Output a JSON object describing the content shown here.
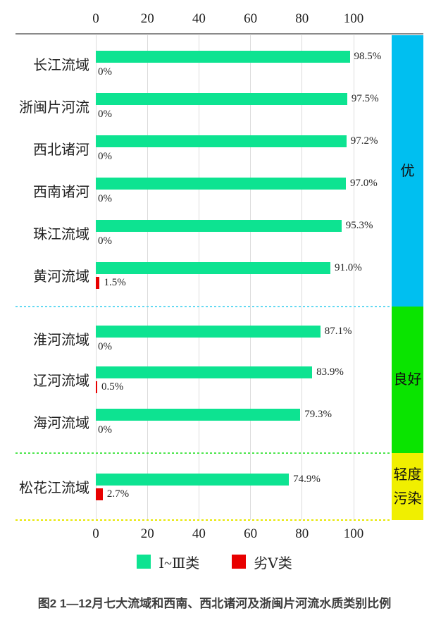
{
  "chart_data": {
    "type": "bar",
    "orientation": "horizontal",
    "categories": [
      "长江流域",
      "浙闽片河流",
      "西北诸河",
      "西南诸河",
      "珠江流域",
      "黄河流域",
      "淮河流域",
      "辽河流域",
      "海河流域",
      "松花江流域"
    ],
    "series": [
      {
        "name": "Ⅰ~Ⅲ类",
        "color": "#0de391",
        "values": [
          98.5,
          97.5,
          97.2,
          97.0,
          95.3,
          91.0,
          87.1,
          83.9,
          79.3,
          74.9
        ],
        "labels": [
          "98.5%",
          "97.5%",
          "97.2%",
          "97.0%",
          "95.3%",
          "91.0%",
          "87.1%",
          "83.9%",
          "79.3%",
          "74.9%"
        ]
      },
      {
        "name": "劣Ⅴ类",
        "color": "#e80000",
        "values": [
          0,
          0,
          0,
          0,
          0,
          1.5,
          0,
          0.5,
          0,
          2.7
        ],
        "labels": [
          "0%",
          "0%",
          "0%",
          "0%",
          "0%",
          "1.5%",
          "0%",
          "0.5%",
          "0%",
          "2.7%"
        ]
      }
    ],
    "x_ticks": [
      "0",
      "20",
      "40",
      "60",
      "80",
      "100"
    ],
    "xlim": [
      0,
      100
    ],
    "grid": "vertical",
    "axis_positions": [
      "top",
      "bottom"
    ],
    "legend_position": "bottom",
    "quality_bands": [
      {
        "label": "优",
        "color": "#00bff0",
        "separator_color": "#63d9f2",
        "rows": [
          "长江流域",
          "浙闽片河流",
          "西北诸河",
          "西南诸河",
          "珠江流域",
          "黄河流域"
        ]
      },
      {
        "label": "良好",
        "color": "#0ae400",
        "separator_color": "#4ce64c",
        "rows": [
          "淮河流域",
          "辽河流域",
          "海河流域"
        ]
      },
      {
        "label": "轻度污染",
        "color": "#f0ef00",
        "separator_color": "#e8e800",
        "rows": [
          "松花江流域"
        ]
      }
    ],
    "caption": "图2  1—12月七大流域和西南、西北诸河及浙闽片河流水质类别比例"
  }
}
